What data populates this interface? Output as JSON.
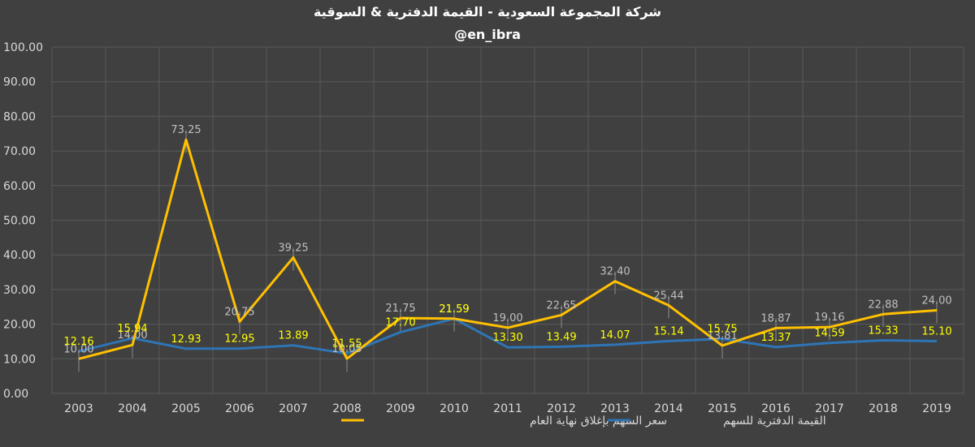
{
  "chart_data": {
    "type": "line",
    "title": "شركة المجموعة السعودية - القيمة الدفترية & السوقية",
    "subtitle": "@en_ibra",
    "categories": [
      "2003",
      "2004",
      "2005",
      "2006",
      "2007",
      "2008",
      "2009",
      "2010",
      "2011",
      "2012",
      "2013",
      "2014",
      "2015",
      "2016",
      "2017",
      "2018",
      "2019"
    ],
    "y_ticks": [
      "0.00",
      "10.00",
      "20.00",
      "30.00",
      "40.00",
      "50.00",
      "60.00",
      "70.00",
      "80.00",
      "90.00",
      "100.00"
    ],
    "ylim": [
      0,
      100
    ],
    "grid": true,
    "legend_position": "bottom",
    "series": [
      {
        "name": "سعر السهم بإغلاق نهاية العام",
        "color": "#ffc000",
        "values": [
          10.0,
          14.0,
          73.25,
          20.75,
          39.25,
          10.05,
          21.75,
          21.59,
          19.0,
          22.65,
          32.4,
          25.44,
          13.81,
          18.87,
          19.16,
          22.88,
          24.0
        ],
        "labels": [
          "10.00",
          "14.00",
          "73.25",
          "20.75",
          "39.25",
          "10.05",
          "21.75",
          "21.59",
          "19.00",
          "22.65",
          "32.40",
          "25.44",
          "13.81",
          "18.87",
          "19.16",
          "22.88",
          "24.00"
        ]
      },
      {
        "name": "القيمة الدفترية للسهم",
        "color": "#2e75b6",
        "values": [
          12.16,
          15.94,
          12.93,
          12.95,
          13.89,
          11.55,
          17.7,
          21.59,
          13.3,
          13.49,
          14.07,
          15.14,
          15.75,
          13.37,
          14.59,
          15.33,
          15.1
        ],
        "labels": [
          "12.16",
          "15.94",
          "12.93",
          "12.95",
          "13.89",
          "11.55",
          "17.70",
          "21.59",
          "13.30",
          "13.49",
          "14.07",
          "15.14",
          "15.75",
          "13.37",
          "14.59",
          "15.33",
          "15.10"
        ]
      }
    ]
  }
}
